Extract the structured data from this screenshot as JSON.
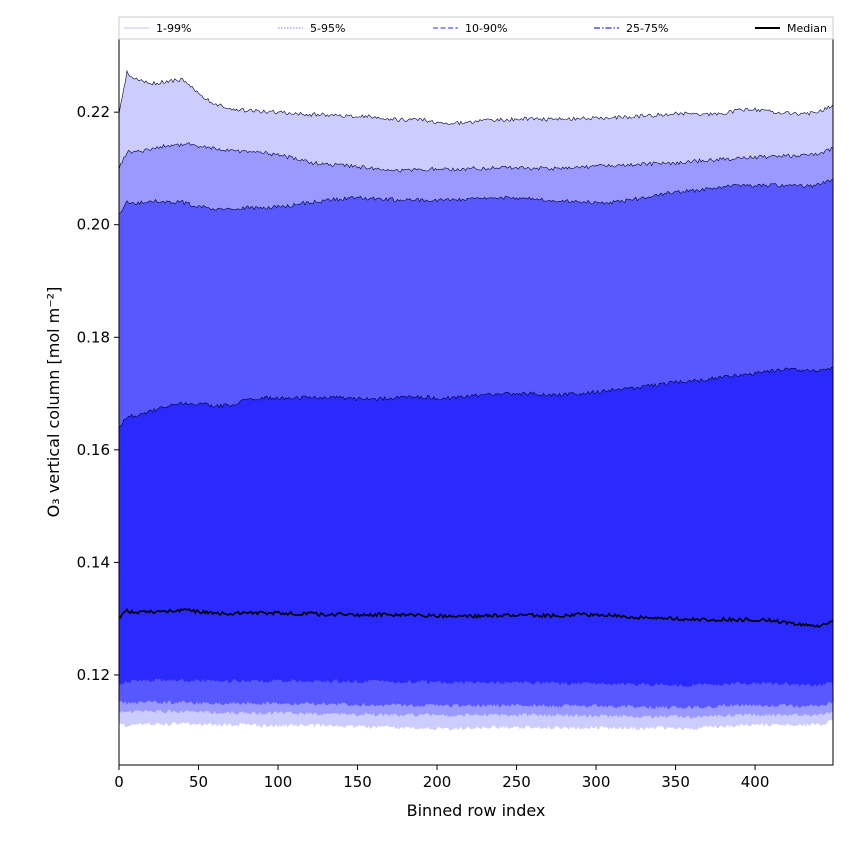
{
  "chart_data": {
    "type": "area",
    "xlabel": "Binned row index",
    "ylabel": "O₃ vertical column [mol m⁻²]",
    "xlim": [
      0,
      449
    ],
    "ylim": [
      0.104,
      0.233
    ],
    "xticks": [
      0,
      50,
      100,
      150,
      200,
      250,
      300,
      350,
      400
    ],
    "yticks": [
      0.12,
      0.14,
      0.16,
      0.18,
      0.2,
      0.22
    ],
    "ytick_labels": [
      "0.12",
      "0.14",
      "0.16",
      "0.18",
      "0.20",
      "0.22"
    ],
    "grid": false,
    "legend_position": "top",
    "colors": {
      "band_1_99": "#ccccff",
      "band_5_95": "#9999ff",
      "band_10_90": "#5858ff",
      "band_25_75": "#2a2aff",
      "median": "#000000"
    },
    "x": [
      0,
      5,
      10,
      20,
      30,
      40,
      45,
      50,
      60,
      70,
      80,
      90,
      100,
      110,
      120,
      130,
      140,
      150,
      160,
      170,
      180,
      190,
      200,
      210,
      220,
      230,
      240,
      250,
      260,
      270,
      280,
      290,
      300,
      310,
      320,
      330,
      340,
      350,
      360,
      370,
      380,
      390,
      400,
      410,
      420,
      430,
      440,
      449
    ],
    "series": [
      {
        "name": "1-99%",
        "role": "upper",
        "band": "1-99%",
        "values": [
          0.22,
          0.227,
          0.226,
          0.225,
          0.2255,
          0.2258,
          0.2245,
          0.2232,
          0.2215,
          0.2207,
          0.2203,
          0.2201,
          0.22,
          0.2198,
          0.2196,
          0.2195,
          0.2194,
          0.2193,
          0.2192,
          0.2188,
          0.2186,
          0.2187,
          0.2182,
          0.218,
          0.2182,
          0.2185,
          0.2186,
          0.2188,
          0.2188,
          0.2187,
          0.2187,
          0.2189,
          0.219,
          0.219,
          0.2191,
          0.2193,
          0.2195,
          0.2197,
          0.2197,
          0.2196,
          0.2198,
          0.2203,
          0.2205,
          0.22,
          0.2198,
          0.2196,
          0.22,
          0.2212
        ]
      },
      {
        "name": "1-99%",
        "role": "lower",
        "band": "1-99%",
        "values": [
          0.1115,
          0.111,
          0.1112,
          0.1113,
          0.1112,
          0.1114,
          0.1113,
          0.1112,
          0.1111,
          0.1111,
          0.1111,
          0.111,
          0.111,
          0.111,
          0.111,
          0.111,
          0.1109,
          0.1108,
          0.1107,
          0.1107,
          0.1106,
          0.1106,
          0.1105,
          0.1105,
          0.1106,
          0.1107,
          0.1107,
          0.1107,
          0.1107,
          0.1106,
          0.1106,
          0.1106,
          0.1106,
          0.1106,
          0.1105,
          0.1105,
          0.1106,
          0.1105,
          0.1104,
          0.1108,
          0.1109,
          0.111,
          0.1111,
          0.1112,
          0.1112,
          0.1111,
          0.1112,
          0.1118
        ]
      },
      {
        "name": "5-95%",
        "role": "upper",
        "band": "5-95%",
        "values": [
          0.21,
          0.213,
          0.2128,
          0.2135,
          0.214,
          0.2142,
          0.2143,
          0.214,
          0.2135,
          0.2132,
          0.213,
          0.2128,
          0.2124,
          0.2118,
          0.211,
          0.2108,
          0.2105,
          0.2103,
          0.2101,
          0.2098,
          0.2096,
          0.2098,
          0.21,
          0.2098,
          0.21,
          0.21,
          0.2102,
          0.21,
          0.21,
          0.21,
          0.21,
          0.2102,
          0.2104,
          0.2106,
          0.2106,
          0.2107,
          0.2109,
          0.211,
          0.2112,
          0.2115,
          0.2116,
          0.2118,
          0.212,
          0.2121,
          0.2122,
          0.2124,
          0.2125,
          0.2135
        ]
      },
      {
        "name": "5-95%",
        "role": "lower",
        "band": "5-95%",
        "values": [
          0.1135,
          0.1134,
          0.1135,
          0.1136,
          0.1135,
          0.1136,
          0.1135,
          0.1134,
          0.1133,
          0.1133,
          0.1133,
          0.1132,
          0.1132,
          0.1132,
          0.1132,
          0.1131,
          0.1131,
          0.113,
          0.113,
          0.1129,
          0.1129,
          0.1129,
          0.1128,
          0.1128,
          0.1129,
          0.1129,
          0.1129,
          0.1129,
          0.1129,
          0.1128,
          0.1128,
          0.1128,
          0.1128,
          0.1127,
          0.1127,
          0.1126,
          0.1126,
          0.1126,
          0.1125,
          0.1127,
          0.1128,
          0.1129,
          0.1129,
          0.1129,
          0.1129,
          0.1128,
          0.1129,
          0.1134
        ]
      },
      {
        "name": "10-90%",
        "role": "upper",
        "band": "10-90%",
        "values": [
          0.202,
          0.204,
          0.2038,
          0.2043,
          0.204,
          0.204,
          0.2036,
          0.2032,
          0.2028,
          0.2028,
          0.203,
          0.203,
          0.2032,
          0.2035,
          0.204,
          0.2043,
          0.2046,
          0.2048,
          0.2046,
          0.2045,
          0.2044,
          0.2044,
          0.2043,
          0.2044,
          0.2046,
          0.2048,
          0.2048,
          0.2048,
          0.2046,
          0.2044,
          0.2042,
          0.204,
          0.204,
          0.204,
          0.2043,
          0.2048,
          0.2054,
          0.2058,
          0.206,
          0.2064,
          0.2068,
          0.207,
          0.207,
          0.207,
          0.207,
          0.2068,
          0.207,
          0.2082
        ]
      },
      {
        "name": "10-90%",
        "role": "lower",
        "band": "10-90%",
        "values": [
          0.1152,
          0.115,
          0.1151,
          0.1152,
          0.1151,
          0.1152,
          0.1151,
          0.115,
          0.115,
          0.115,
          0.115,
          0.1149,
          0.1149,
          0.1149,
          0.1149,
          0.1148,
          0.1148,
          0.1147,
          0.1147,
          0.1146,
          0.1146,
          0.1146,
          0.1145,
          0.1145,
          0.1146,
          0.1146,
          0.1146,
          0.1146,
          0.1146,
          0.1145,
          0.1145,
          0.1145,
          0.1145,
          0.1144,
          0.1144,
          0.1143,
          0.1143,
          0.1143,
          0.1142,
          0.1144,
          0.1145,
          0.1146,
          0.1146,
          0.1146,
          0.1146,
          0.1145,
          0.1146,
          0.115
        ]
      },
      {
        "name": "25-75%",
        "role": "upper",
        "band": "25-75%",
        "values": [
          0.164,
          0.166,
          0.166,
          0.1668,
          0.1678,
          0.1682,
          0.1683,
          0.1682,
          0.1677,
          0.168,
          0.1688,
          0.1692,
          0.1692,
          0.1692,
          0.1693,
          0.1693,
          0.1693,
          0.169,
          0.169,
          0.1692,
          0.1694,
          0.1694,
          0.1692,
          0.1692,
          0.1695,
          0.1698,
          0.17,
          0.17,
          0.17,
          0.1698,
          0.1698,
          0.17,
          0.1703,
          0.1706,
          0.1708,
          0.1712,
          0.1716,
          0.172,
          0.1722,
          0.1725,
          0.173,
          0.1732,
          0.1736,
          0.174,
          0.1742,
          0.1742,
          0.174,
          0.1745
        ]
      },
      {
        "name": "25-75%",
        "role": "lower",
        "band": "25-75%",
        "values": [
          0.1185,
          0.1188,
          0.119,
          0.1191,
          0.119,
          0.1191,
          0.119,
          0.119,
          0.1189,
          0.1189,
          0.119,
          0.1189,
          0.119,
          0.119,
          0.119,
          0.1189,
          0.1189,
          0.1189,
          0.1189,
          0.1188,
          0.1188,
          0.1188,
          0.1187,
          0.1187,
          0.1187,
          0.1187,
          0.1186,
          0.1186,
          0.1186,
          0.1186,
          0.1185,
          0.1185,
          0.1185,
          0.1184,
          0.1184,
          0.1183,
          0.1183,
          0.1182,
          0.1181,
          0.1183,
          0.1184,
          0.1185,
          0.1185,
          0.1185,
          0.1184,
          0.1182,
          0.1182,
          0.1185
        ]
      },
      {
        "name": "Median",
        "role": "median",
        "values": [
          0.13,
          0.1315,
          0.131,
          0.1312,
          0.1313,
          0.1315,
          0.1315,
          0.1312,
          0.131,
          0.131,
          0.131,
          0.131,
          0.131,
          0.1309,
          0.1309,
          0.1307,
          0.1308,
          0.1307,
          0.1307,
          0.1307,
          0.1306,
          0.1306,
          0.1305,
          0.1304,
          0.1304,
          0.1305,
          0.1306,
          0.1306,
          0.1306,
          0.1305,
          0.1306,
          0.1307,
          0.1307,
          0.1306,
          0.1303,
          0.1302,
          0.1301,
          0.13,
          0.1298,
          0.1298,
          0.1299,
          0.1298,
          0.1298,
          0.1297,
          0.1293,
          0.1289,
          0.1288,
          0.1296
        ]
      }
    ],
    "legend": [
      {
        "label": "1-99%",
        "style": "solid",
        "color": "#ccccff"
      },
      {
        "label": "5-95%",
        "style": "dotted",
        "color": "#9999ff"
      },
      {
        "label": "10-90%",
        "style": "dashed",
        "color": "#5858ff"
      },
      {
        "label": "25-75%",
        "style": "dashdot",
        "color": "#2a2aff"
      },
      {
        "label": "Median",
        "style": "solid",
        "color": "#000000"
      }
    ]
  }
}
